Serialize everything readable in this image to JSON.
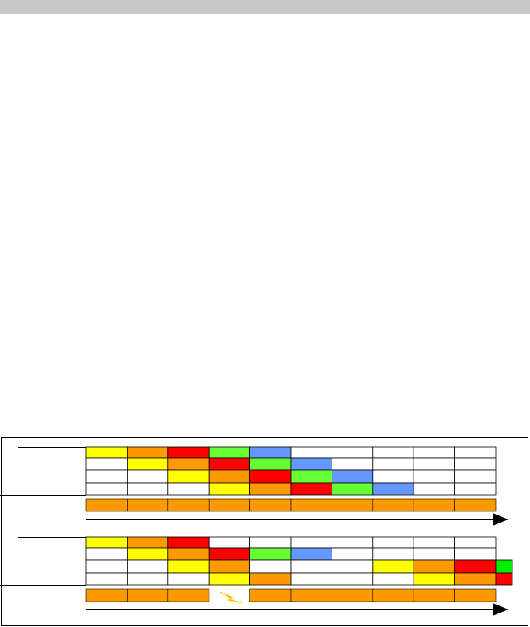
{
  "diagrams": [
    {
      "rows": [
        [
          "#ffff00",
          "#ff9900",
          "#ff0000",
          "#66ff33",
          "#6699ff",
          "#ffffff",
          "#ffffff",
          "#ffffff",
          "#ffffff",
          "#ffffff"
        ],
        [
          "#ffffff",
          "#ffff00",
          "#ff9900",
          "#ff0000",
          "#66ff33",
          "#6699ff",
          "#ffffff",
          "#ffffff",
          "#ffffff",
          "#ffffff"
        ],
        [
          "#ffffff",
          "#ffffff",
          "#ffff00",
          "#ff9900",
          "#ff0000",
          "#66ff33",
          "#6699ff",
          "#ffffff",
          "#ffffff",
          "#ffffff"
        ],
        [
          "#ffffff",
          "#ffffff",
          "#ffffff",
          "#ffff00",
          "#ff9900",
          "#ff0000",
          "#66ff33",
          "#6699ff",
          "#ffffff",
          "#ffffff"
        ]
      ],
      "extra": [
        null,
        null,
        null,
        null
      ],
      "bar": [
        "#ff9900",
        "#ff9900",
        "#ff9900",
        "#ff9900",
        "#ff9900",
        "#ff9900",
        "#ff9900",
        "#ff9900",
        "#ff9900",
        "#ff9900"
      ]
    },
    {
      "rows": [
        [
          "#ffff00",
          "#ff9900",
          "#ff0000",
          "#ffffff",
          "#ffffff",
          "#ffffff",
          "#ffffff",
          "#ffffff",
          "#ffffff",
          "#ffffff"
        ],
        [
          "#ffffff",
          "#ffff00",
          "#ff9900",
          "#ff0000",
          "#66ff33",
          "#6699ff",
          "#ffffff",
          "#ffffff",
          "#ffffff",
          "#ffffff"
        ],
        [
          "#ffffff",
          "#ffffff",
          "#ffff00",
          "#ff9900",
          "#ffffff",
          "#ffffff",
          "#ffffff",
          "#ffff00",
          "#ff9900",
          "#ff0000"
        ],
        [
          "#ffffff",
          "#ffffff",
          "#ffffff",
          "#ffff00",
          "#ff9900",
          "#ffffff",
          "#ffffff",
          "#ffffff",
          "#ffff00",
          "#ff9900"
        ]
      ],
      "extra": [
        null,
        null,
        "#00ee00",
        "#ff0000"
      ],
      "bar": [
        "#ff9900",
        "#ff9900",
        "#ff9900",
        "#ffffff",
        "#ff9900",
        "#ff9900",
        "#ff9900",
        "#ff9900",
        "#ff9900",
        "#ff9900"
      ]
    }
  ]
}
